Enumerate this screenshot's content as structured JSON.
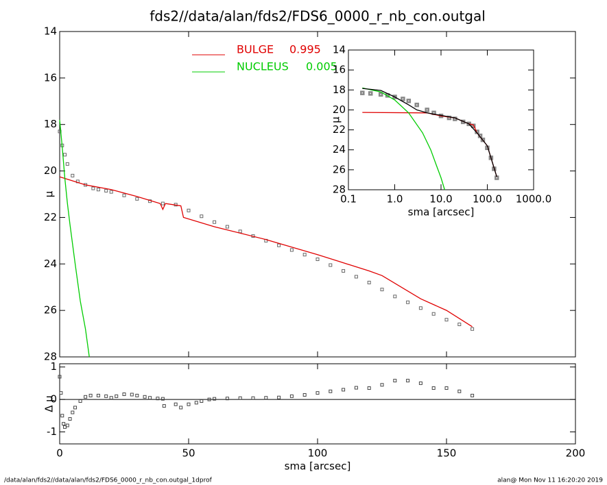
{
  "chart_data": [
    {
      "type": "line",
      "title": "fds2//data/alan/fds2/FDS6_0000_r_nb_con.outgal",
      "ylabel": "μ",
      "xlim": [
        0,
        200
      ],
      "xticks": [
        0,
        50,
        100,
        150,
        200
      ],
      "show_xtick_labels": false,
      "ylim": [
        28,
        14
      ],
      "yticks": [
        14,
        16,
        18,
        20,
        22,
        24,
        26,
        28
      ],
      "series": [
        {
          "style": "points",
          "color": "#666666",
          "x": [
            0,
            1,
            2,
            3,
            5,
            7,
            10,
            13,
            15,
            18,
            20,
            25,
            30,
            35,
            40,
            45,
            50,
            55,
            60,
            65,
            70,
            75,
            80,
            85,
            90,
            95,
            100,
            105,
            110,
            115,
            120,
            125,
            130,
            135,
            140,
            145,
            150,
            155,
            160
          ],
          "values": [
            18.3,
            18.9,
            19.3,
            19.7,
            20.2,
            20.45,
            20.6,
            20.75,
            20.8,
            20.85,
            20.9,
            21.05,
            21.2,
            21.3,
            21.4,
            21.45,
            21.7,
            21.95,
            22.2,
            22.4,
            22.6,
            22.8,
            23.0,
            23.2,
            23.4,
            23.6,
            23.8,
            24.05,
            24.3,
            24.55,
            24.8,
            25.1,
            25.4,
            25.65,
            25.9,
            26.15,
            26.4,
            26.6,
            26.8
          ]
        },
        {
          "style": "line",
          "name": "BULGE",
          "fraction": 0.995,
          "color": "#e00000",
          "x": [
            0,
            10,
            20,
            30,
            39,
            40,
            41,
            47,
            48,
            60,
            80,
            100,
            120,
            125,
            140,
            150,
            160
          ],
          "values": [
            20.25,
            20.6,
            20.8,
            21.1,
            21.4,
            21.65,
            21.4,
            21.5,
            22.0,
            22.4,
            22.95,
            23.6,
            24.3,
            24.5,
            25.5,
            26.0,
            26.7
          ]
        },
        {
          "style": "line",
          "name": "NUCLEUS",
          "fraction": 0.005,
          "color": "#00cc00",
          "x": [
            0,
            0.5,
            1,
            2,
            3,
            4,
            6,
            8,
            10,
            11.5
          ],
          "values": [
            17.8,
            18.4,
            19.0,
            20.3,
            21.4,
            22.3,
            24,
            25.6,
            26.8,
            28
          ]
        }
      ]
    },
    {
      "type": "line",
      "xlabel": "sma [arcsec]",
      "ylabel": "Δ μ",
      "xlim": [
        0,
        200
      ],
      "xticks": [
        0,
        50,
        100,
        150,
        200
      ],
      "show_xtick_labels": true,
      "ylim": [
        -1.37,
        1.1
      ],
      "yticks": [
        -1,
        0,
        1
      ],
      "reference_line": 0,
      "series": [
        {
          "style": "points",
          "color": "#444444",
          "x": [
            0,
            0.5,
            1,
            1.5,
            2,
            3,
            4,
            5,
            6,
            8,
            10,
            12,
            15,
            18,
            20,
            22,
            25,
            28,
            30,
            33,
            35,
            38,
            40,
            40.5,
            45,
            47,
            50,
            53,
            55,
            58,
            60,
            65,
            70,
            75,
            80,
            85,
            90,
            95,
            100,
            105,
            110,
            115,
            120,
            125,
            130,
            135,
            140,
            145,
            150,
            155,
            160
          ],
          "values": [
            0.7,
            0.2,
            -0.5,
            -0.75,
            -0.85,
            -0.8,
            -0.6,
            -0.4,
            -0.25,
            -0.05,
            0.08,
            0.12,
            0.12,
            0.1,
            0.05,
            0.1,
            0.16,
            0.15,
            0.12,
            0.08,
            0.05,
            0.03,
            0.02,
            -0.2,
            -0.15,
            -0.25,
            -0.15,
            -0.1,
            -0.05,
            0,
            0.02,
            0.03,
            0.04,
            0.04,
            0.05,
            0.06,
            0.1,
            0.14,
            0.2,
            0.25,
            0.3,
            0.36,
            0.35,
            0.45,
            0.58,
            0.58,
            0.5,
            0.35,
            0.35,
            0.25,
            0.12
          ]
        }
      ]
    },
    {
      "type": "line",
      "xlabel": "sma [arcsec]",
      "ylabel": "μ",
      "xlog": true,
      "xlim": [
        0.1,
        1000
      ],
      "xticks": [
        0.1,
        {
          "value": 1,
          "label": "1.0"
        },
        {
          "value": 10,
          "label": "10.0"
        },
        {
          "value": 100,
          "label": "100.0"
        },
        {
          "value": 1000,
          "label": "1000.0"
        }
      ],
      "show_xtick_labels": true,
      "ylim": [
        28,
        14
      ],
      "yticks": [
        14,
        16,
        18,
        20,
        22,
        24,
        26,
        28
      ],
      "series": [
        {
          "style": "points",
          "color": "#888888",
          "x": [
            0.2,
            0.3,
            0.5,
            0.7,
            1,
            1.5,
            2,
            3,
            5,
            7,
            10,
            15,
            20,
            30,
            40,
            50,
            60,
            70,
            80,
            100,
            120,
            140,
            160
          ],
          "values": [
            18.3,
            18.35,
            18.45,
            18.55,
            18.7,
            18.9,
            19.1,
            19.5,
            20.0,
            20.3,
            20.6,
            20.8,
            20.9,
            21.2,
            21.4,
            21.6,
            22.2,
            22.6,
            23.0,
            23.8,
            24.8,
            25.9,
            26.8
          ]
        },
        {
          "style": "line",
          "color": "#e00000",
          "x": [
            0.2,
            5,
            10,
            20,
            40,
            50,
            60,
            100,
            160
          ],
          "values": [
            20.25,
            20.3,
            20.6,
            20.8,
            21.4,
            21.5,
            22.3,
            23.6,
            26.7
          ]
        },
        {
          "style": "line",
          "color": "#00cc00",
          "x": [
            0.2,
            0.5,
            1,
            2,
            4,
            6,
            8,
            10,
            12
          ],
          "values": [
            17.8,
            18.2,
            19.0,
            20.3,
            22.3,
            24,
            25.6,
            26.8,
            28
          ]
        },
        {
          "style": "line",
          "color": "#000000",
          "x": [
            0.2,
            0.5,
            1,
            2,
            3,
            5,
            10,
            20,
            40,
            60,
            100,
            160
          ],
          "values": [
            17.85,
            18.05,
            18.7,
            19.5,
            20.0,
            20.3,
            20.55,
            20.8,
            21.4,
            22.3,
            23.6,
            26.7
          ]
        }
      ]
    }
  ],
  "footer": {
    "left": "/data/alan/fds2//data/alan/fds2/FDS6_0000_r_nb_con.outgal_1dprof",
    "right": "alan@  Mon Nov 11 16:20:20 2019"
  }
}
